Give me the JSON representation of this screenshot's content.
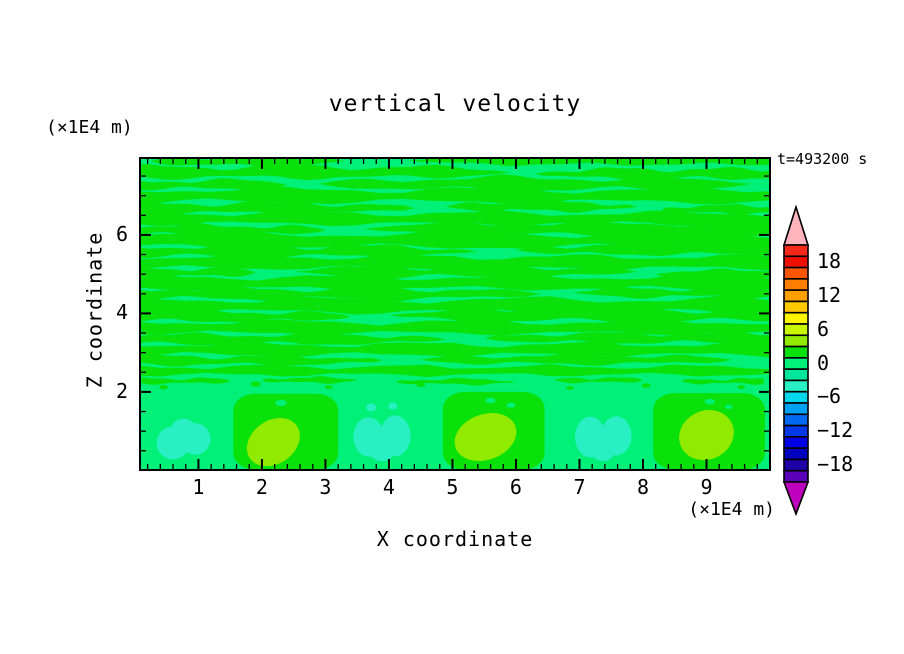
{
  "page": {
    "bg": "#ffffff",
    "text_color": "#000000"
  },
  "header": {
    "title": "vertical velocity",
    "time_label": "t=493200 s"
  },
  "axes": {
    "x": {
      "label": "X coordinate",
      "units": "(×1E4 m)",
      "range": [
        0.08,
        10.0
      ],
      "major_ticks": [
        1,
        2,
        3,
        4,
        5,
        6,
        7,
        8,
        9
      ],
      "minor_step": 0.2
    },
    "z": {
      "label": "Z coordinate",
      "units": "(×1E4 m)",
      "range": [
        0.01,
        7.96
      ],
      "major_ticks": [
        2,
        4,
        6
      ],
      "minor_step": 0.5
    }
  },
  "colorbar": {
    "min": -21,
    "max": 21,
    "interval": 2,
    "tick_values": [
      18,
      12,
      6,
      0,
      -6,
      -12,
      -18
    ],
    "band_colors": [
      "#f5291a",
      "#ee0f00",
      "#fa5500",
      "#ff7d00",
      "#ffa000",
      "#ffc800",
      "#fdf500",
      "#c8f500",
      "#91eb00",
      "#0ae10a",
      "#00f078",
      "#00e69b",
      "#28f0c3",
      "#00d7eb",
      "#00a0f5",
      "#0069f0",
      "#0037e6",
      "#0000e6",
      "#0000be",
      "#1e00a5",
      "#5a00b9"
    ],
    "over_color": "#ffb4be",
    "under_color": "#be00be"
  },
  "chart_data": {
    "type": "filled_contour",
    "title": "vertical velocity",
    "time_annotation": "t=493200 s",
    "xlabel": "X coordinate",
    "ylabel": "Z coordinate",
    "x_range": [
      0.08,
      10.0
    ],
    "z_range": [
      0.01,
      7.96
    ],
    "contour_interval": 2,
    "background_band": "-1 to 1",
    "colors": {
      "background": "#00f078",
      "streak": "#0ae10a",
      "cell": "#0ae10a",
      "core": "#91eb00",
      "cold": "#28f0c3",
      "cell_dot": "#00f078"
    },
    "streaks": [
      [
        7.88,
        0.25,
        3.3,
        0.22,
        0.05,
        1.9,
        0.5
      ],
      [
        7.9,
        4.3,
        10.0,
        0.2,
        0.04,
        1.6,
        2.1
      ],
      [
        7.6,
        0.0,
        5.9,
        0.26,
        0.06,
        1.4,
        1.0
      ],
      [
        7.56,
        6.3,
        10.0,
        0.22,
        0.05,
        1.9,
        4.0
      ],
      [
        7.28,
        0.0,
        2.4,
        0.2,
        0.05,
        1.7,
        2.6
      ],
      [
        7.3,
        2.9,
        9.7,
        0.28,
        0.07,
        1.2,
        0.2
      ],
      [
        7.0,
        0.0,
        10.0,
        0.3,
        0.07,
        1.0,
        3.3
      ],
      [
        6.68,
        0.0,
        4.4,
        0.24,
        0.06,
        1.5,
        1.4
      ],
      [
        6.72,
        4.9,
        7.9,
        0.2,
        0.05,
        2.1,
        5.0
      ],
      [
        6.65,
        8.3,
        10.0,
        0.18,
        0.04,
        2.4,
        0.8
      ],
      [
        6.42,
        0.0,
        10.0,
        0.26,
        0.06,
        1.1,
        2.0
      ],
      [
        6.12,
        0.0,
        3.0,
        0.22,
        0.05,
        1.8,
        4.4
      ],
      [
        6.15,
        3.6,
        10.0,
        0.28,
        0.06,
        1.3,
        1.6
      ],
      [
        5.86,
        0.0,
        10.0,
        0.32,
        0.07,
        0.9,
        5.2
      ],
      [
        5.58,
        0.0,
        5.4,
        0.24,
        0.06,
        1.5,
        2.9
      ],
      [
        5.62,
        6.0,
        10.0,
        0.22,
        0.05,
        1.7,
        0.3
      ],
      [
        5.3,
        0.0,
        10.0,
        0.28,
        0.06,
        1.2,
        3.8
      ],
      [
        5.04,
        0.0,
        1.9,
        0.18,
        0.04,
        2.3,
        1.1
      ],
      [
        5.06,
        2.5,
        7.9,
        0.24,
        0.06,
        1.4,
        4.7
      ],
      [
        5.0,
        8.2,
        10.0,
        0.18,
        0.04,
        2.0,
        2.3
      ],
      [
        4.78,
        0.0,
        10.0,
        0.28,
        0.06,
        1.1,
        0.9
      ],
      [
        4.5,
        0.0,
        6.4,
        0.24,
        0.06,
        1.5,
        3.1
      ],
      [
        4.53,
        6.9,
        10.0,
        0.2,
        0.05,
        1.8,
        5.5
      ],
      [
        4.2,
        0.0,
        10.0,
        0.3,
        0.07,
        1.0,
        1.8
      ],
      [
        3.92,
        0.0,
        3.4,
        0.22,
        0.05,
        1.7,
        4.1
      ],
      [
        3.95,
        4.0,
        10.0,
        0.26,
        0.06,
        1.3,
        0.6
      ],
      [
        3.64,
        0.0,
        10.0,
        0.28,
        0.06,
        1.1,
        2.7
      ],
      [
        3.34,
        0.0,
        4.9,
        0.22,
        0.05,
        1.6,
        5.0
      ],
      [
        3.37,
        5.5,
        10.0,
        0.22,
        0.05,
        1.7,
        1.3
      ],
      [
        3.08,
        0.0,
        10.0,
        0.26,
        0.06,
        1.2,
        3.5
      ],
      [
        2.8,
        0.0,
        3.9,
        0.2,
        0.05,
        1.8,
        0.1
      ],
      [
        2.82,
        4.5,
        9.4,
        0.2,
        0.05,
        1.6,
        4.9
      ],
      [
        2.54,
        0.0,
        10.0,
        0.2,
        0.05,
        1.4,
        2.2
      ],
      [
        2.28,
        0.1,
        1.5,
        0.12,
        0.03,
        2.8,
        1.0
      ],
      [
        2.3,
        2.0,
        3.5,
        0.12,
        0.03,
        3.0,
        3.0
      ],
      [
        2.26,
        4.1,
        6.0,
        0.12,
        0.03,
        2.7,
        5.1
      ],
      [
        2.3,
        6.6,
        8.0,
        0.11,
        0.03,
        2.9,
        0.7
      ],
      [
        2.27,
        8.6,
        9.9,
        0.11,
        0.03,
        3.2,
        2.5
      ]
    ],
    "updraft_cells": [
      {
        "x0": 1.55,
        "x1": 3.2,
        "z0": 0.02,
        "z1": 1.95,
        "r": 0.38
      },
      {
        "x0": 4.85,
        "x1": 6.45,
        "z0": 0.02,
        "z1": 2.0,
        "r": 0.38
      },
      {
        "x0": 8.16,
        "x1": 9.92,
        "z0": 0.02,
        "z1": 1.97,
        "r": 0.38
      }
    ],
    "updraft_cores": [
      {
        "cx": 2.18,
        "cz": 0.72,
        "rx": 0.45,
        "rz": 0.55,
        "rot": -35
      },
      {
        "cx": 5.52,
        "cz": 0.85,
        "rx": 0.5,
        "rz": 0.58,
        "rot": -20
      },
      {
        "cx": 9.0,
        "cz": 0.9,
        "rx": 0.44,
        "rz": 0.62,
        "rot": -25
      }
    ],
    "downdraft_blobs": [
      {
        "parts": [
          [
            0.6,
            0.7,
            0.26,
            0.42
          ],
          [
            0.95,
            0.8,
            0.24,
            0.4
          ],
          [
            0.77,
            1.02,
            0.2,
            0.3
          ]
        ]
      },
      {
        "parts": [
          [
            3.68,
            0.85,
            0.24,
            0.5
          ],
          [
            4.1,
            0.88,
            0.24,
            0.52
          ],
          [
            3.89,
            0.5,
            0.2,
            0.26
          ],
          [
            3.72,
            1.6,
            0.08,
            0.1
          ],
          [
            4.06,
            1.64,
            0.07,
            0.09
          ]
        ]
      },
      {
        "parts": [
          [
            7.17,
            0.85,
            0.24,
            0.52
          ],
          [
            7.58,
            0.88,
            0.24,
            0.5
          ],
          [
            7.37,
            0.48,
            0.18,
            0.24
          ]
        ]
      }
    ],
    "warm_specks": [
      [
        0.45,
        2.12,
        0.07
      ],
      [
        1.9,
        2.2,
        0.08
      ],
      [
        3.05,
        2.12,
        0.06
      ],
      [
        4.5,
        2.18,
        0.07
      ],
      [
        6.85,
        2.1,
        0.06
      ],
      [
        8.05,
        2.16,
        0.07
      ],
      [
        9.55,
        2.12,
        0.06
      ]
    ],
    "cell_dots": [
      [
        2.3,
        1.72,
        0.09
      ],
      [
        5.6,
        1.78,
        0.08
      ],
      [
        5.92,
        1.66,
        0.07
      ],
      [
        9.05,
        1.75,
        0.08
      ],
      [
        9.35,
        1.62,
        0.06
      ]
    ]
  }
}
